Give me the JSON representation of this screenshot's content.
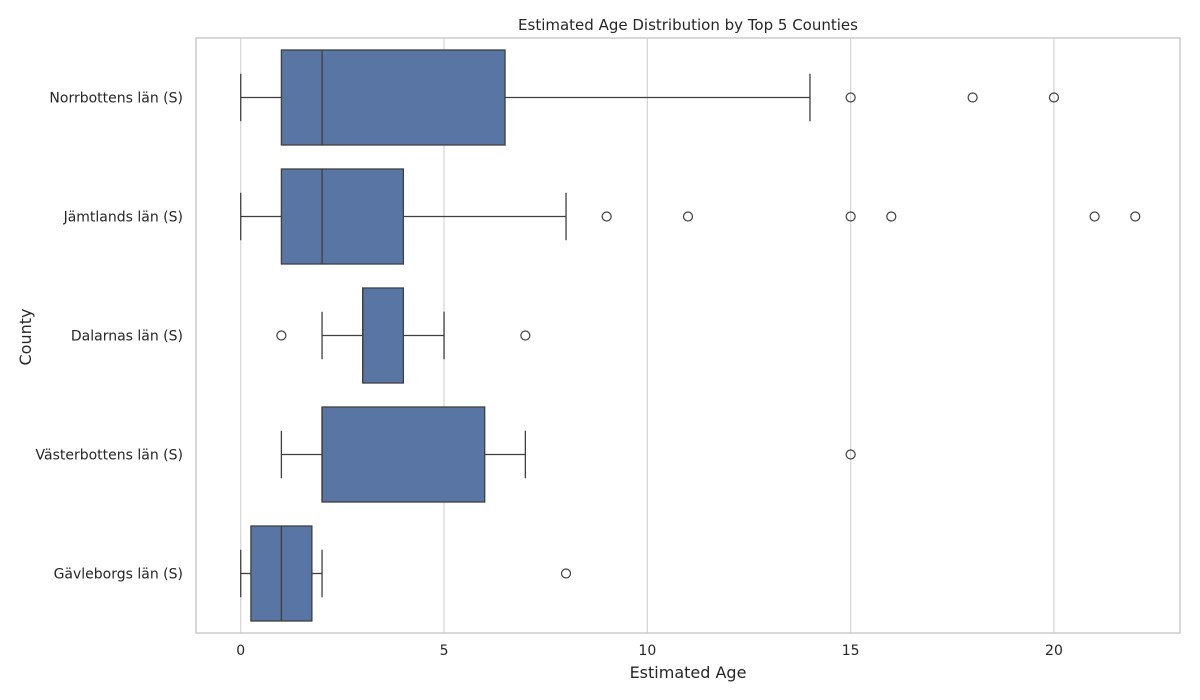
{
  "chart_data": {
    "type": "boxplot",
    "orientation": "horizontal",
    "title": "Estimated Age Distribution by Top 5 Counties",
    "xlabel": "Estimated Age",
    "ylabel": "County",
    "xlim": [
      -1.1,
      23.1
    ],
    "xticks": [
      0,
      5,
      10,
      15,
      20
    ],
    "grid": "vertical",
    "box_color": "#5875a4",
    "line_color": "#3f3f3f",
    "grid_color": "#d4d4d4",
    "frame_color": "#cccccc",
    "series": [
      {
        "name": "Norrbottens län (S)",
        "whisker_low": 0,
        "q1": 1,
        "median": 2,
        "q3": 6.5,
        "whisker_high": 14,
        "outliers": [
          15,
          18,
          20
        ]
      },
      {
        "name": "Jämtlands län (S)",
        "whisker_low": 0,
        "q1": 1,
        "median": 2,
        "q3": 4,
        "whisker_high": 8,
        "outliers": [
          9,
          11,
          15,
          16,
          21,
          22
        ]
      },
      {
        "name": "Dalarnas län (S)",
        "whisker_low": 2,
        "q1": 3,
        "median": 3,
        "q3": 4,
        "whisker_high": 5,
        "outliers": [
          1,
          7
        ]
      },
      {
        "name": "Västerbottens län (S)",
        "whisker_low": 1,
        "q1": 2,
        "median": 2,
        "q3": 6,
        "whisker_high": 7,
        "outliers": [
          15
        ]
      },
      {
        "name": "Gävleborgs län (S)",
        "whisker_low": 0,
        "q1": 0.25,
        "median": 1,
        "q3": 1.75,
        "whisker_high": 2,
        "outliers": [
          8
        ]
      }
    ]
  }
}
